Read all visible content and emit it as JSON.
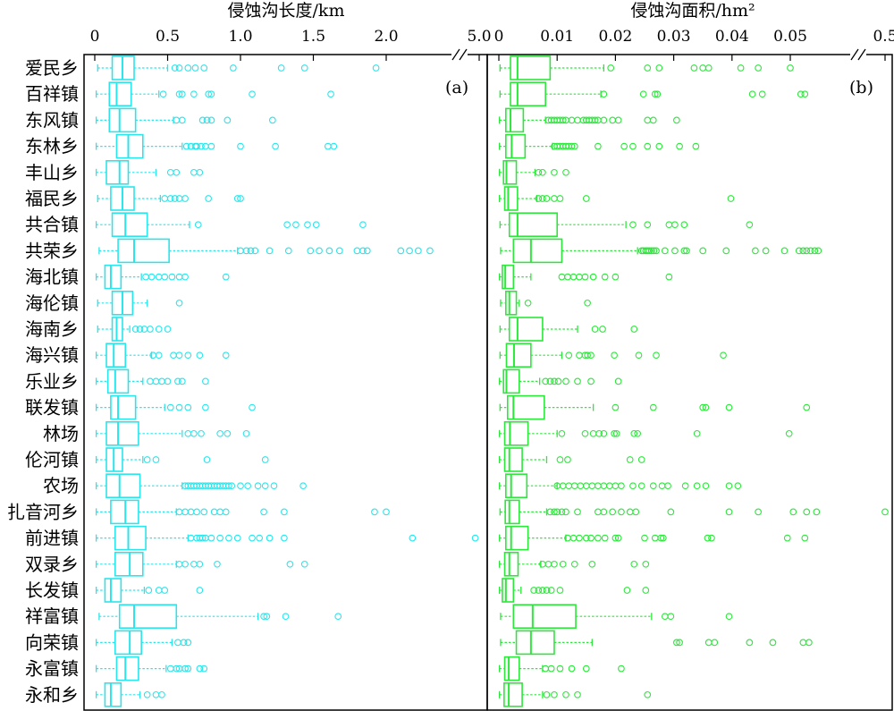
{
  "chart_data": [
    {
      "type": "box",
      "panel_label": "(a)",
      "xlabel": "侵蚀沟长度/km",
      "ticks": [
        "0",
        "0.5",
        "1.0",
        "1.5",
        "2.0",
        "5.0"
      ],
      "x_scale": "broken",
      "x_break": [
        2.33,
        4.9
      ],
      "xlim": [
        0,
        5.0
      ],
      "color": "#28E6EC",
      "categories": [
        "爱民乡",
        "百祥镇",
        "东风镇",
        "东林乡",
        "丰山乡",
        "福民乡",
        "共合镇",
        "共荣乡",
        "海北镇",
        "海伦镇",
        "海南乡",
        "海兴镇",
        "乐业乡",
        "联发镇",
        "林场",
        "伦河镇",
        "农场",
        "扎音河乡",
        "前进镇",
        "双录乡",
        "长发镇",
        "祥富镇",
        "向荣镇",
        "永富镇",
        "永和乡"
      ],
      "boxes": [
        {
          "min": 0.02,
          "q1": 0.12,
          "median": 0.19,
          "q3": 0.27,
          "max": 0.5
        },
        {
          "min": 0.01,
          "q1": 0.1,
          "median": 0.15,
          "q3": 0.25,
          "max": 0.44
        },
        {
          "min": 0.01,
          "q1": 0.1,
          "median": 0.17,
          "q3": 0.28,
          "max": 0.54
        },
        {
          "min": 0.01,
          "q1": 0.15,
          "median": 0.23,
          "q3": 0.33,
          "max": 0.6
        },
        {
          "min": 0.01,
          "q1": 0.08,
          "median": 0.17,
          "q3": 0.23,
          "max": 0.42
        },
        {
          "min": 0.02,
          "q1": 0.11,
          "median": 0.19,
          "q3": 0.27,
          "max": 0.45
        },
        {
          "min": 0.01,
          "q1": 0.12,
          "median": 0.21,
          "q3": 0.36,
          "max": 0.65
        },
        {
          "min": 0.03,
          "q1": 0.16,
          "median": 0.27,
          "q3": 0.51,
          "max": 0.98
        },
        {
          "min": 0.01,
          "q1": 0.07,
          "median": 0.11,
          "q3": 0.18,
          "max": 0.32
        },
        {
          "min": 0.02,
          "q1": 0.12,
          "median": 0.19,
          "q3": 0.26,
          "max": 0.36
        },
        {
          "min": 0.02,
          "q1": 0.12,
          "median": 0.15,
          "q3": 0.19,
          "max": 0.24
        },
        {
          "min": 0.01,
          "q1": 0.08,
          "median": 0.13,
          "q3": 0.21,
          "max": 0.39
        },
        {
          "min": 0.01,
          "q1": 0.09,
          "median": 0.14,
          "q3": 0.23,
          "max": 0.33
        },
        {
          "min": 0.01,
          "q1": 0.11,
          "median": 0.16,
          "q3": 0.28,
          "max": 0.48
        },
        {
          "min": 0.01,
          "q1": 0.08,
          "median": 0.16,
          "q3": 0.3,
          "max": 0.6
        },
        {
          "min": 0.01,
          "q1": 0.08,
          "median": 0.13,
          "q3": 0.19,
          "max": 0.33
        },
        {
          "min": 0.01,
          "q1": 0.08,
          "median": 0.17,
          "q3": 0.31,
          "max": 0.6
        },
        {
          "min": 0.01,
          "q1": 0.11,
          "median": 0.21,
          "q3": 0.3,
          "max": 0.56
        },
        {
          "min": 0.01,
          "q1": 0.14,
          "median": 0.23,
          "q3": 0.35,
          "max": 0.64
        },
        {
          "min": 0.01,
          "q1": 0.14,
          "median": 0.24,
          "q3": 0.33,
          "max": 0.56
        },
        {
          "min": 0.01,
          "q1": 0.07,
          "median": 0.11,
          "q3": 0.18,
          "max": 0.34
        },
        {
          "min": 0.03,
          "q1": 0.17,
          "median": 0.27,
          "q3": 0.56,
          "max": 1.12
        },
        {
          "min": 0.01,
          "q1": 0.14,
          "median": 0.24,
          "q3": 0.32,
          "max": 0.53
        },
        {
          "min": 0.01,
          "q1": 0.15,
          "median": 0.21,
          "q3": 0.3,
          "max": 0.49
        },
        {
          "min": 0.01,
          "q1": 0.07,
          "median": 0.11,
          "q3": 0.18,
          "max": 0.31
        }
      ],
      "outliers": [
        [
          0.55,
          0.58,
          0.64,
          0.69,
          0.75,
          0.95,
          1.28,
          1.44,
          1.93
        ],
        [
          0.47,
          0.58,
          0.6,
          0.68,
          0.78,
          0.8,
          1.08,
          1.62
        ],
        [
          0.56,
          0.6,
          0.74,
          0.77,
          0.8,
          0.91,
          1.22
        ],
        [
          0.63,
          0.66,
          0.69,
          0.7,
          0.73,
          0.76,
          0.8,
          1.0,
          1.24,
          1.6,
          1.64
        ],
        [
          0.52,
          0.56,
          0.68,
          0.72
        ],
        [
          0.48,
          0.52,
          0.55,
          0.58,
          0.62,
          0.78,
          0.98,
          1.0
        ],
        [
          0.71,
          1.32,
          1.38,
          1.46,
          1.52,
          1.84
        ],
        [
          1.0,
          1.04,
          1.07,
          1.1,
          1.2,
          1.33,
          1.48,
          1.54,
          1.61,
          1.68,
          1.8,
          1.84,
          1.87,
          2.1,
          2.16,
          2.22,
          2.3
        ],
        [
          0.35,
          0.39,
          0.44,
          0.48,
          0.53,
          0.58,
          0.62,
          0.9
        ],
        [
          0.58
        ],
        [
          0.28,
          0.31,
          0.34,
          0.38,
          0.44,
          0.5
        ],
        [
          0.4,
          0.44,
          0.54,
          0.58,
          0.64,
          0.72,
          0.9
        ],
        [
          0.38,
          0.42,
          0.46,
          0.5,
          0.57,
          0.6,
          0.76
        ],
        [
          0.52,
          0.58,
          0.64,
          0.76,
          1.08
        ],
        [
          0.64,
          0.68,
          0.73,
          0.86,
          0.91,
          1.04
        ],
        [
          0.36,
          0.42,
          0.77,
          1.17
        ],
        [
          0.62,
          0.64,
          0.66,
          0.68,
          0.7,
          0.72,
          0.74,
          0.76,
          0.78,
          0.8,
          0.82,
          0.84,
          0.86,
          0.88,
          0.9,
          0.92,
          0.94,
          1.0,
          1.05,
          1.12,
          1.17,
          1.23,
          1.43
        ],
        [
          0.58,
          0.62,
          0.66,
          0.7,
          0.75,
          0.82,
          0.86,
          0.9,
          1.16,
          1.3,
          1.92,
          2.0
        ],
        [
          0.66,
          0.7,
          0.72,
          0.74,
          0.76,
          0.8,
          0.86,
          0.92,
          0.98,
          1.08,
          1.13,
          1.2,
          1.3,
          2.18,
          4.98
        ],
        [
          0.58,
          0.62,
          0.68,
          0.72,
          0.84,
          1.34,
          1.44
        ],
        [
          0.37,
          0.44,
          0.48,
          0.72
        ],
        [
          1.16,
          1.18,
          1.31,
          1.67
        ],
        [
          0.57,
          0.61,
          0.64
        ],
        [
          0.52,
          0.56,
          0.58,
          0.62,
          0.64,
          0.72,
          0.75
        ],
        [
          0.36,
          0.42,
          0.46
        ]
      ]
    },
    {
      "type": "box",
      "panel_label": "(b)",
      "xlabel": "侵蚀沟面积/hm²",
      "ticks": [
        "0",
        "0.01",
        "0.02",
        "0.03",
        "0.04",
        "0.05",
        "0.5"
      ],
      "x_scale": "broken",
      "x_break": [
        0.0555,
        0.47
      ],
      "xlim": [
        0,
        0.5
      ],
      "color": "#2BE83A",
      "categories": [
        "爱民乡",
        "百祥镇",
        "东风镇",
        "东林乡",
        "丰山乡",
        "福民乡",
        "共合镇",
        "共荣乡",
        "海北镇",
        "海伦镇",
        "海南乡",
        "海兴镇",
        "乐业乡",
        "联发镇",
        "林场",
        "伦河镇",
        "农场",
        "扎音河乡",
        "前进镇",
        "双录乡",
        "长发镇",
        "祥富镇",
        "向荣镇",
        "永富镇",
        "永和乡"
      ],
      "boxes": [
        {
          "min": 0.0002,
          "q1": 0.002,
          "median": 0.0032,
          "q3": 0.0088,
          "max": 0.018
        },
        {
          "min": 0.0002,
          "q1": 0.002,
          "median": 0.0032,
          "q3": 0.008,
          "max": 0.0175
        },
        {
          "min": 0.0001,
          "q1": 0.0012,
          "median": 0.002,
          "q3": 0.0042,
          "max": 0.008
        },
        {
          "min": 0.0001,
          "q1": 0.0012,
          "median": 0.0022,
          "q3": 0.0045,
          "max": 0.0092
        },
        {
          "min": 0.0001,
          "q1": 0.0008,
          "median": 0.0013,
          "q3": 0.003,
          "max": 0.0062
        },
        {
          "min": 0.0001,
          "q1": 0.001,
          "median": 0.0016,
          "q3": 0.0032,
          "max": 0.0065
        },
        {
          "min": 0.0002,
          "q1": 0.0018,
          "median": 0.0032,
          "q3": 0.01,
          "max": 0.0218
        },
        {
          "min": 0.0003,
          "q1": 0.0025,
          "median": 0.0055,
          "q3": 0.0108,
          "max": 0.0238
        },
        {
          "min": 0.0001,
          "q1": 0.0006,
          "median": 0.0011,
          "q3": 0.0025,
          "max": 0.0055
        },
        {
          "min": 0.0003,
          "q1": 0.0012,
          "median": 0.0018,
          "q3": 0.003,
          "max": 0.0035
        },
        {
          "min": 0.0002,
          "q1": 0.0018,
          "median": 0.0032,
          "q3": 0.0075,
          "max": 0.0135
        },
        {
          "min": 0.0002,
          "q1": 0.0013,
          "median": 0.0026,
          "q3": 0.0055,
          "max": 0.0108
        },
        {
          "min": 0.0001,
          "q1": 0.0008,
          "median": 0.0013,
          "q3": 0.0035,
          "max": 0.007
        },
        {
          "min": 0.0002,
          "q1": 0.0015,
          "median": 0.0025,
          "q3": 0.0078,
          "max": 0.0162
        },
        {
          "min": 0.0001,
          "q1": 0.001,
          "median": 0.0019,
          "q3": 0.005,
          "max": 0.01
        },
        {
          "min": 0.0001,
          "q1": 0.001,
          "median": 0.0018,
          "q3": 0.004,
          "max": 0.0082
        },
        {
          "min": 0.0001,
          "q1": 0.0012,
          "median": 0.0021,
          "q3": 0.0048,
          "max": 0.01
        },
        {
          "min": 0.0002,
          "q1": 0.0011,
          "median": 0.0018,
          "q3": 0.0035,
          "max": 0.0082
        },
        {
          "min": 0.0001,
          "q1": 0.0012,
          "median": 0.0021,
          "q3": 0.005,
          "max": 0.0115
        },
        {
          "min": 0.0001,
          "q1": 0.001,
          "median": 0.0018,
          "q3": 0.0033,
          "max": 0.0072
        },
        {
          "min": 0.0001,
          "q1": 0.0006,
          "median": 0.0012,
          "q3": 0.0025,
          "max": 0.0038
        },
        {
          "min": 0.0003,
          "q1": 0.0025,
          "median": 0.0058,
          "q3": 0.0132,
          "max": 0.0262
        },
        {
          "min": 0.0003,
          "q1": 0.003,
          "median": 0.0055,
          "q3": 0.0095,
          "max": 0.016
        },
        {
          "min": 0.0001,
          "q1": 0.001,
          "median": 0.0017,
          "q3": 0.0035,
          "max": 0.0075
        },
        {
          "min": 0.0001,
          "q1": 0.0009,
          "median": 0.0017,
          "q3": 0.004,
          "max": 0.0075
        }
      ],
      "outliers": [
        [
          0.0192,
          0.0255,
          0.0275,
          0.0335,
          0.035,
          0.036,
          0.0415,
          0.0445,
          0.05
        ],
        [
          0.018,
          0.0248,
          0.0268,
          0.0272,
          0.0435,
          0.0452,
          0.0518,
          0.0525
        ],
        [
          0.0085,
          0.009,
          0.0095,
          0.01,
          0.0105,
          0.011,
          0.0115,
          0.0125,
          0.0135,
          0.0145,
          0.015,
          0.0155,
          0.016,
          0.0165,
          0.017,
          0.018,
          0.0195,
          0.0205,
          0.0255,
          0.0265,
          0.0305
        ],
        [
          0.0095,
          0.01,
          0.0105,
          0.011,
          0.0115,
          0.012,
          0.0125,
          0.013,
          0.017,
          0.0215,
          0.023,
          0.0255,
          0.0275,
          0.031,
          0.0338
        ],
        [
          0.0068,
          0.0075,
          0.0095,
          0.0115
        ],
        [
          0.0068,
          0.0075,
          0.0082,
          0.0095,
          0.0105,
          0.015,
          0.0398
        ],
        [
          0.023,
          0.0255,
          0.0292,
          0.0302,
          0.0318,
          0.043
        ],
        [
          0.0245,
          0.0248,
          0.0252,
          0.0255,
          0.0258,
          0.0262,
          0.0266,
          0.027,
          0.0285,
          0.0302,
          0.0318,
          0.0322,
          0.035,
          0.039,
          0.044,
          0.0458,
          0.049,
          0.0515,
          0.0522,
          0.0528,
          0.0535,
          0.0542,
          0.0548
        ],
        [
          0.0108,
          0.0118,
          0.0128,
          0.0138,
          0.0148,
          0.0162,
          0.0182,
          0.02,
          0.0292
        ],
        [
          0.005,
          0.0152
        ],
        [
          0.0165,
          0.0178,
          0.0232
        ],
        [
          0.012,
          0.0138,
          0.0148,
          0.0152,
          0.0158,
          0.0198,
          0.024,
          0.027,
          0.0385
        ],
        [
          0.008,
          0.0088,
          0.0095,
          0.0102,
          0.0115,
          0.0135,
          0.0158,
          0.0205
        ],
        [
          0.02,
          0.0265,
          0.035,
          0.0355,
          0.0395,
          0.0528
        ],
        [
          0.0108,
          0.0148,
          0.0162,
          0.0172,
          0.018,
          0.0198,
          0.0202,
          0.0232,
          0.0238,
          0.034,
          0.0498
        ],
        [
          0.0105,
          0.0118,
          0.0225,
          0.0245
        ],
        [
          0.01,
          0.011,
          0.012,
          0.013,
          0.014,
          0.015,
          0.016,
          0.017,
          0.018,
          0.019,
          0.02,
          0.021,
          0.023,
          0.0245,
          0.0265,
          0.028,
          0.029,
          0.032,
          0.034,
          0.0355,
          0.0395,
          0.041
        ],
        [
          0.0088,
          0.0095,
          0.01,
          0.0108,
          0.0115,
          0.0135,
          0.017,
          0.018,
          0.0195,
          0.021,
          0.0225,
          0.0235,
          0.0295,
          0.0395,
          0.0445,
          0.0505,
          0.0528,
          0.0545,
          0.5
        ],
        [
          0.0118,
          0.0128,
          0.0138,
          0.015,
          0.0158,
          0.017,
          0.0182,
          0.02,
          0.0205,
          0.025,
          0.0268,
          0.0278,
          0.0282,
          0.0358,
          0.0365,
          0.0495,
          0.0525
        ],
        [
          0.0075,
          0.0085,
          0.0095,
          0.011,
          0.013,
          0.016,
          0.0232,
          0.0252
        ],
        [
          0.006,
          0.0068,
          0.0075,
          0.0082,
          0.009,
          0.0105,
          0.022,
          0.0252
        ],
        [
          0.0285,
          0.0295,
          0.0395
        ],
        [
          0.0305,
          0.031,
          0.036,
          0.037,
          0.043,
          0.047,
          0.0522,
          0.0532
        ],
        [
          0.008,
          0.009,
          0.0105,
          0.0125,
          0.015,
          0.021
        ],
        [
          0.0082,
          0.0095,
          0.0115,
          0.0135,
          0.0255
        ]
      ]
    }
  ]
}
